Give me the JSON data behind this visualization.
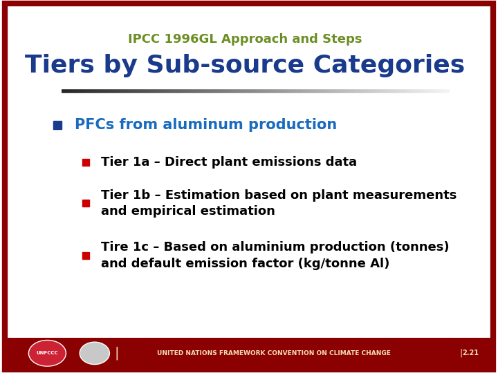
{
  "subtitle": "IPCC 1996GL Approach and Steps",
  "title": "Tiers by Sub-source Categories",
  "subtitle_color": "#6b8e23",
  "title_color": "#1a3a8c",
  "background_color": "#ffffff",
  "border_color": "#8b0000",
  "footer_bg_color": "#8b0000",
  "footer_text": "UNITED NATIONS FRAMEWORK CONVENTION ON CLIMATE CHANGE",
  "footer_page": "2.21",
  "footer_text_color": "#f5deb3",
  "bullet1_text": "PFCs from aluminum production",
  "bullet1_color": "#1a6bbf",
  "bullet1_marker_color": "#1a3a8c",
  "sub_bullets": [
    "Tier 1a – Direct plant emissions data",
    "Tier 1b – Estimation based on plant measurements\nand empirical estimation",
    "Tire 1c – Based on aluminium production (tonnes)\nand default emission factor (kg/tonne Al)"
  ],
  "sub_bullet_color": "#000000",
  "sub_bullet_marker_color": "#cc0000",
  "border_width": 6
}
